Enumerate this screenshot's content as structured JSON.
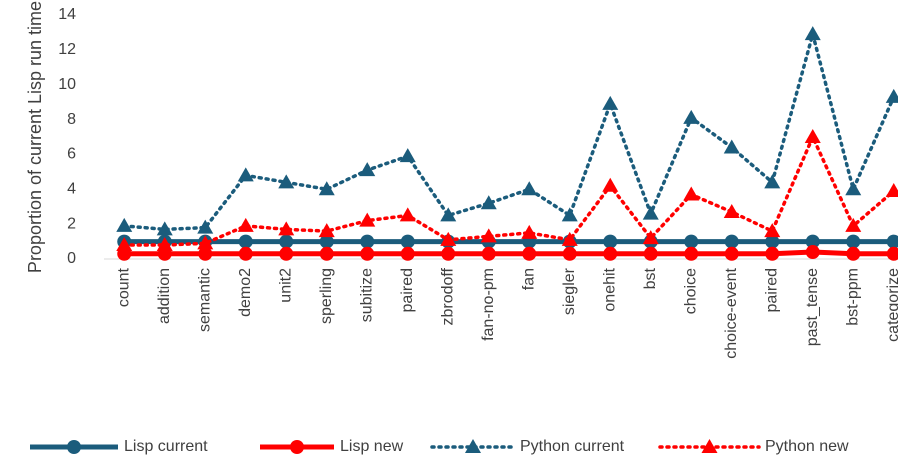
{
  "chart_data": {
    "type": "line",
    "y_label": "Proportion of current Lisp run time",
    "categories": [
      "count",
      "addition",
      "semantic",
      "demo2",
      "unit2",
      "sperling",
      "subitize",
      "paired",
      "zbrodoff",
      "fan-no-pm",
      "fan",
      "siegler",
      "onehit",
      "bst",
      "choice",
      "choice-event",
      "paired",
      "past_tense",
      "bst-ppm",
      "categorize"
    ],
    "series": [
      {
        "name": "Lisp current",
        "color": "#1b5c7c",
        "dash": "solid",
        "marker": "circle",
        "values": [
          1,
          1,
          1,
          1,
          1,
          1,
          1,
          1,
          1,
          1,
          1,
          1,
          1,
          1,
          1,
          1,
          1,
          1,
          1,
          1
        ]
      },
      {
        "name": "Lisp new",
        "color": "#ff0000",
        "dash": "solid",
        "marker": "circle",
        "values": [
          0.3,
          0.3,
          0.3,
          0.3,
          0.3,
          0.3,
          0.3,
          0.3,
          0.3,
          0.3,
          0.3,
          0.3,
          0.3,
          0.3,
          0.3,
          0.3,
          0.3,
          0.4,
          0.3,
          0.3
        ]
      },
      {
        "name": "Python current",
        "color": "#1b5c7c",
        "dash": "dotted",
        "marker": "triangle",
        "values": [
          1.9,
          1.7,
          1.8,
          4.8,
          4.4,
          4.0,
          5.1,
          5.9,
          2.5,
          3.2,
          4.0,
          2.5,
          8.9,
          2.6,
          8.1,
          6.4,
          4.4,
          12.9,
          4.0,
          9.3
        ]
      },
      {
        "name": "Python new",
        "color": "#ff0000",
        "dash": "dotted",
        "marker": "triangle",
        "values": [
          0.8,
          0.8,
          0.9,
          1.9,
          1.7,
          1.6,
          2.2,
          2.5,
          1.1,
          1.3,
          1.5,
          1.1,
          4.2,
          1.2,
          3.7,
          2.7,
          1.6,
          7.0,
          1.9,
          3.9
        ]
      }
    ],
    "ylim": [
      0,
      14
    ],
    "yticks": [
      0,
      2,
      4,
      6,
      8,
      10,
      12,
      14
    ],
    "grid": false,
    "legend": "bottom"
  }
}
